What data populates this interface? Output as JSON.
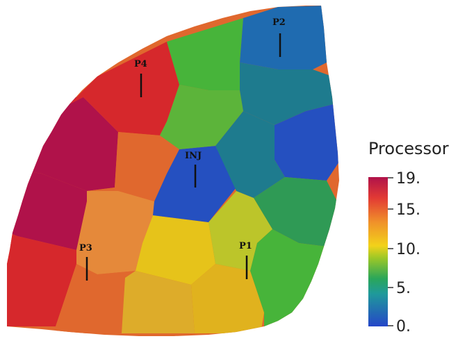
{
  "wells": {
    "p2": "P2",
    "p4": "P4",
    "inj": "INJ",
    "p3": "P3",
    "p1": "P1"
  },
  "legend": {
    "title": "Processor",
    "ticks": [
      "19.",
      "15.",
      "10.",
      "5.",
      "0."
    ],
    "colormap": [
      "#2546c8",
      "#1f8fb6",
      "#2aa65a",
      "#74c12a",
      "#e9c71c",
      "#f09a2a",
      "#e64a35",
      "#b0124a"
    ]
  },
  "palette": {
    "dark_red": "#b0124a",
    "red": "#d6282c",
    "orange": "#e0682e",
    "light_orange": "#e5893a",
    "amber": "#ddac2a",
    "yellow": "#e6c31a",
    "yellow_green": "#bcc52a",
    "green": "#47b43a",
    "deep_green": "#2f9a55",
    "teal": "#1e7b8e",
    "blue": "#1f6bb0",
    "deep_blue": "#2550c0"
  }
}
